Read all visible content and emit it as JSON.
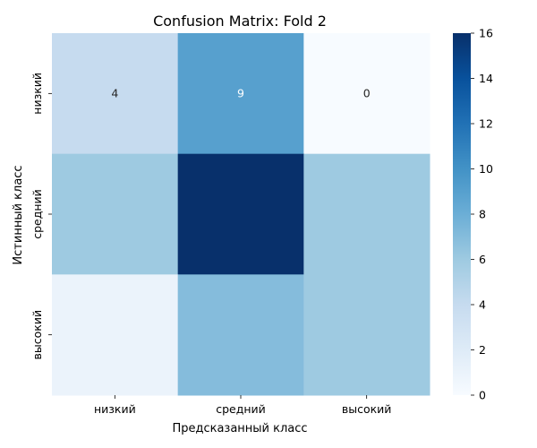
{
  "chart_data": {
    "type": "heatmap",
    "title": "Confusion Matrix: Fold 2",
    "xlabel": "Предсказанный класс",
    "ylabel": "Истинный класс",
    "x_categories": [
      "низкий",
      "средний",
      "высокий"
    ],
    "y_categories": [
      "низкий",
      "средний",
      "высокий"
    ],
    "values": [
      [
        4,
        9,
        0
      ],
      [
        6,
        16,
        6
      ],
      [
        1,
        7,
        6
      ]
    ],
    "annotated_cells": [
      {
        "row": 0,
        "col": 0,
        "text": "4"
      },
      {
        "row": 0,
        "col": 1,
        "text": "9"
      },
      {
        "row": 0,
        "col": 2,
        "text": "0"
      }
    ],
    "colormap": "Blues",
    "colorbar": {
      "range": [
        0,
        16
      ],
      "ticks": [
        0,
        2,
        4,
        6,
        8,
        10,
        12,
        14,
        16
      ]
    }
  }
}
